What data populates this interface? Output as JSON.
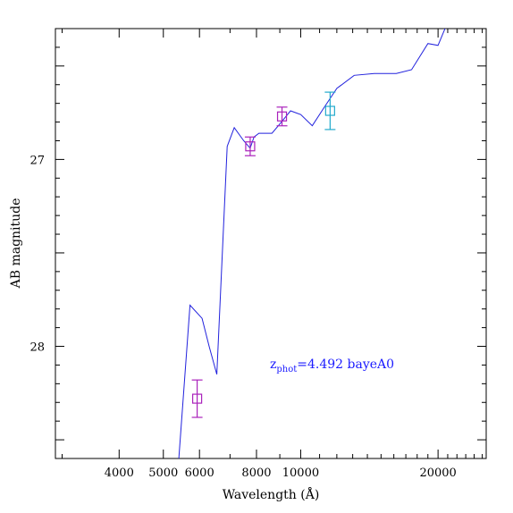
{
  "chart_data": {
    "type": "line",
    "xlabel": "Wavelength (Å)",
    "ylabel": "AB magnitude",
    "x_scale": "log",
    "y_inverted": true,
    "xlim": [
      2900,
      25500
    ],
    "ylim": [
      28.6,
      26.3
    ],
    "x_tick_labels": [
      {
        "value": 4000,
        "label": "4000"
      },
      {
        "value": 5000,
        "label": "5000"
      },
      {
        "value": 6000,
        "label": "6000"
      },
      {
        "value": 8000,
        "label": "8000"
      },
      {
        "value": 10000,
        "label": "10000"
      },
      {
        "value": 20000,
        "label": "20000"
      }
    ],
    "y_tick_labels": [
      {
        "value": 27,
        "label": "27"
      },
      {
        "value": 28,
        "label": "28"
      }
    ],
    "grid": false,
    "annotation": {
      "z_main": "z",
      "z_sub": "phot",
      "text": "=4.492 bayeA0",
      "color": "#1a1aff"
    },
    "series": [
      {
        "color": "#2222dd",
        "x": [
          5350,
          5720,
          6080,
          6300,
          6550,
          6900,
          7150,
          7500,
          7750,
          7900,
          8100,
          8350,
          8650,
          9000,
          9500,
          10000,
          10600,
          11200,
          12000,
          13100,
          14500,
          16200,
          17500,
          19000,
          20000,
          20800,
          21300
        ],
        "y": [
          28.75,
          27.78,
          27.85,
          28.0,
          28.15,
          26.93,
          26.83,
          26.9,
          26.94,
          26.88,
          26.86,
          26.86,
          26.86,
          26.81,
          26.74,
          26.76,
          26.82,
          26.73,
          26.62,
          26.55,
          26.54,
          26.54,
          26.52,
          26.38,
          26.39,
          26.29,
          26.29
        ]
      }
    ],
    "photometry": [
      {
        "x": 5930,
        "y": 28.28,
        "err": 0.1,
        "color": "#aa22bb"
      },
      {
        "x": 7750,
        "y": 26.93,
        "err": 0.05,
        "color": "#aa22bb"
      },
      {
        "x": 9100,
        "y": 26.77,
        "err": 0.05,
        "color": "#aa22bb"
      },
      {
        "x": 11600,
        "y": 26.74,
        "err": 0.1,
        "color": "#22aacc"
      }
    ]
  }
}
